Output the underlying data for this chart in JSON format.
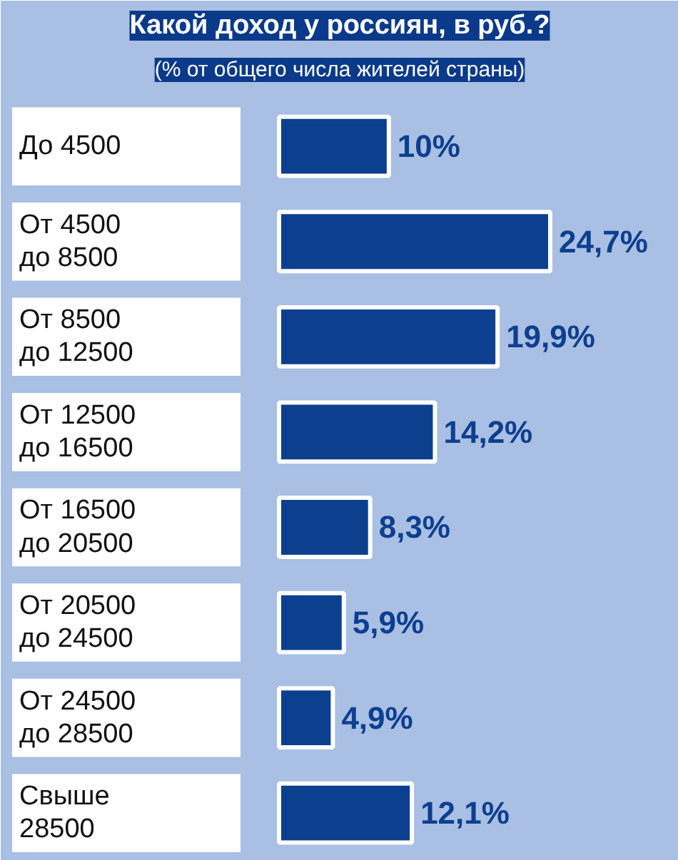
{
  "chart_data": {
    "type": "bar",
    "orientation": "horizontal",
    "title": "Какой доход у россиян, в руб.?",
    "subtitle": "(% от общего числа жителей страны)",
    "categories": [
      "До 4500",
      "От 4500\nдо 8500",
      "От 8500\nдо 12500",
      "От 12500\nдо 16500",
      "От 16500\nдо 20500",
      "От 20500\nдо 24500",
      "От 24500\nдо 28500",
      "Свыше\n28500"
    ],
    "values": [
      10,
      24.7,
      19.9,
      14.2,
      8.3,
      5.9,
      4.9,
      12.1
    ],
    "value_labels": [
      "10%",
      "24,7%",
      "19,9%",
      "14,2%",
      "8,3%",
      "5,9%",
      "4,9%",
      "12,1%"
    ],
    "color": "#0d3f8f"
  }
}
